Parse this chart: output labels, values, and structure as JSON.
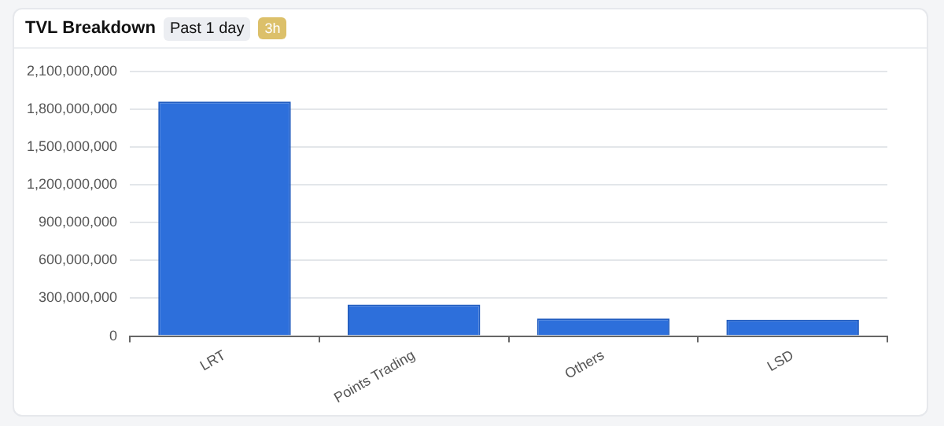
{
  "chart_data": {
    "type": "bar",
    "title": "TVL Breakdown",
    "subtitle": "Past 1 day",
    "annotations": [
      "3h"
    ],
    "categories": [
      "LRT",
      "Points Trading",
      "Others",
      "LSD"
    ],
    "values": [
      1860000000,
      250000000,
      140000000,
      130000000
    ],
    "color": "#2d6fdb",
    "ylim": [
      0,
      2100000000
    ],
    "yticks": [
      0,
      {
        "value": 300000000,
        "label": "300,000,000"
      },
      {
        "value": 600000000,
        "label": "600,000,000"
      },
      {
        "value": 900000000,
        "label": "900,000,000"
      },
      {
        "value": 1200000000,
        "label": "1,200,000,000"
      },
      {
        "value": 1500000000,
        "label": "1,500,000,000"
      },
      {
        "value": 1800000000,
        "label": "1,800,000,000"
      },
      {
        "value": 2100000000,
        "label": "2,100,000,000"
      }
    ],
    "grid": "y",
    "legend": false
  }
}
